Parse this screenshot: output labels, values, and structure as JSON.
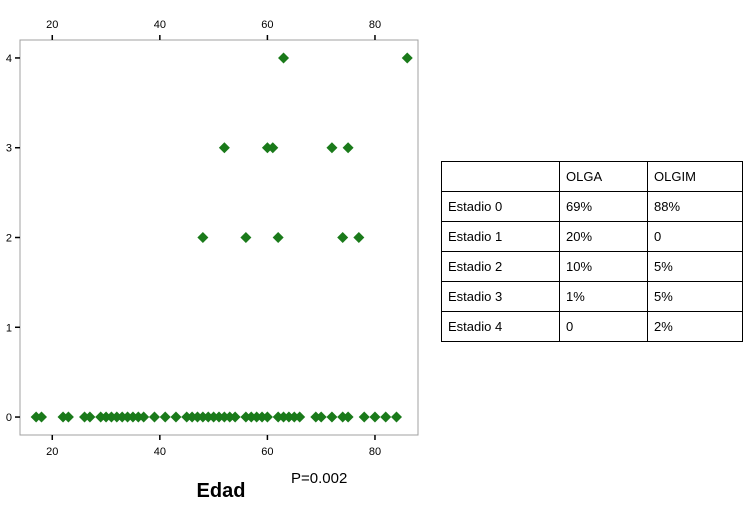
{
  "chart_data": {
    "type": "scatter",
    "xlabel": "Edad",
    "ylabel": "",
    "title": "",
    "annotation": "P=0.002",
    "xlim": [
      14,
      88
    ],
    "ylim": [
      -0.2,
      4.2
    ],
    "x_ticks": [
      20,
      40,
      60,
      80
    ],
    "y_ticks": [
      0,
      1,
      2,
      3,
      4
    ],
    "marker_color": "#1a7a1a",
    "marker": "diamond",
    "grid": false,
    "points": [
      {
        "x": 17,
        "y": 0
      },
      {
        "x": 18,
        "y": 0
      },
      {
        "x": 22,
        "y": 0
      },
      {
        "x": 23,
        "y": 0
      },
      {
        "x": 26,
        "y": 0
      },
      {
        "x": 27,
        "y": 0
      },
      {
        "x": 29,
        "y": 0
      },
      {
        "x": 30,
        "y": 0
      },
      {
        "x": 31,
        "y": 0
      },
      {
        "x": 32,
        "y": 0
      },
      {
        "x": 33,
        "y": 0
      },
      {
        "x": 34,
        "y": 0
      },
      {
        "x": 35,
        "y": 0
      },
      {
        "x": 36,
        "y": 0
      },
      {
        "x": 37,
        "y": 0
      },
      {
        "x": 39,
        "y": 0
      },
      {
        "x": 41,
        "y": 0
      },
      {
        "x": 43,
        "y": 0
      },
      {
        "x": 45,
        "y": 0
      },
      {
        "x": 46,
        "y": 0
      },
      {
        "x": 47,
        "y": 0
      },
      {
        "x": 48,
        "y": 0
      },
      {
        "x": 49,
        "y": 0
      },
      {
        "x": 50,
        "y": 0
      },
      {
        "x": 51,
        "y": 0
      },
      {
        "x": 52,
        "y": 0
      },
      {
        "x": 53,
        "y": 0
      },
      {
        "x": 54,
        "y": 0
      },
      {
        "x": 56,
        "y": 0
      },
      {
        "x": 57,
        "y": 0
      },
      {
        "x": 58,
        "y": 0
      },
      {
        "x": 59,
        "y": 0
      },
      {
        "x": 60,
        "y": 0
      },
      {
        "x": 62,
        "y": 0
      },
      {
        "x": 63,
        "y": 0
      },
      {
        "x": 64,
        "y": 0
      },
      {
        "x": 65,
        "y": 0
      },
      {
        "x": 66,
        "y": 0
      },
      {
        "x": 69,
        "y": 0
      },
      {
        "x": 70,
        "y": 0
      },
      {
        "x": 72,
        "y": 0
      },
      {
        "x": 74,
        "y": 0
      },
      {
        "x": 75,
        "y": 0
      },
      {
        "x": 78,
        "y": 0
      },
      {
        "x": 80,
        "y": 0
      },
      {
        "x": 82,
        "y": 0
      },
      {
        "x": 84,
        "y": 0
      },
      {
        "x": 48,
        "y": 2
      },
      {
        "x": 56,
        "y": 2
      },
      {
        "x": 62,
        "y": 2
      },
      {
        "x": 74,
        "y": 2
      },
      {
        "x": 77,
        "y": 2
      },
      {
        "x": 52,
        "y": 3
      },
      {
        "x": 60,
        "y": 3
      },
      {
        "x": 61,
        "y": 3
      },
      {
        "x": 72,
        "y": 3
      },
      {
        "x": 75,
        "y": 3
      },
      {
        "x": 63,
        "y": 4
      },
      {
        "x": 86,
        "y": 4
      }
    ]
  },
  "table": {
    "headers": [
      "",
      "OLGA",
      "OLGIM"
    ],
    "rows": [
      [
        "Estadio 0",
        "69%",
        "88%"
      ],
      [
        "Estadio 1",
        "20%",
        "0"
      ],
      [
        "Estadio 2",
        "10%",
        "5%"
      ],
      [
        "Estadio 3",
        "1%",
        "5%"
      ],
      [
        "Estadio 4",
        "0",
        "2%"
      ]
    ]
  }
}
